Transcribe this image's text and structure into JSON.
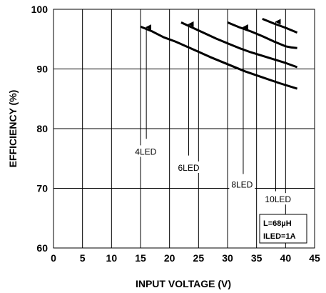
{
  "chart_data": {
    "type": "line",
    "xlabel": "INPUT VOLTAGE (V)",
    "ylabel": "EFFICIENCY (%)",
    "xlim": [
      0,
      45
    ],
    "ylim": [
      60,
      100
    ],
    "x_ticks": [
      "0",
      "5",
      "10",
      "15",
      "20",
      "25",
      "30",
      "35",
      "40",
      "45"
    ],
    "y_ticks": [
      "60",
      "70",
      "80",
      "90",
      "100"
    ],
    "grid": true,
    "series": [
      {
        "name": "4LED",
        "x": [
          15,
          17,
          19,
          21,
          24,
          27,
          30,
          33,
          36,
          39,
          42
        ],
        "y": [
          97.1,
          96.3,
          95.3,
          94.6,
          93.3,
          92.0,
          90.8,
          89.6,
          88.6,
          87.6,
          86.7
        ]
      },
      {
        "name": "6LED",
        "x": [
          22,
          24,
          26,
          28,
          30,
          32,
          34,
          36,
          38,
          40,
          42
        ],
        "y": [
          97.8,
          96.9,
          96.0,
          95.1,
          94.3,
          93.5,
          92.8,
          92.2,
          91.6,
          91.0,
          90.3
        ]
      },
      {
        "name": "8LED",
        "x": [
          30,
          32,
          34,
          36,
          38,
          40,
          41,
          42
        ],
        "y": [
          97.8,
          97.0,
          96.3,
          95.5,
          94.6,
          93.8,
          93.6,
          93.5
        ]
      },
      {
        "name": "10LED",
        "x": [
          36,
          38,
          40,
          42
        ],
        "y": [
          98.4,
          97.6,
          96.9,
          96.1
        ]
      }
    ],
    "annotations": [
      {
        "text": "4LED",
        "label_x": 15.9,
        "label_y": 76.0,
        "arrow_x": 16.0,
        "arrow_from_y": 78.3,
        "arrow_to_y": 97.0
      },
      {
        "text": "6LED",
        "label_x": 23.3,
        "label_y": 73.3,
        "arrow_x": 23.3,
        "arrow_from_y": 75.5,
        "arrow_to_y": 97.5
      },
      {
        "text": "8LED",
        "label_x": 32.5,
        "label_y": 70.5,
        "arrow_x": 32.7,
        "arrow_from_y": 72.4,
        "arrow_to_y": 97.0
      },
      {
        "text": "10LED",
        "label_x": 38.7,
        "label_y": 68.0,
        "arrow_x": 38.3,
        "arrow_from_y": 69.5,
        "arrow_to_y": 97.9
      }
    ],
    "note_lines": [
      "L=68µH",
      "ILED=1A"
    ]
  }
}
